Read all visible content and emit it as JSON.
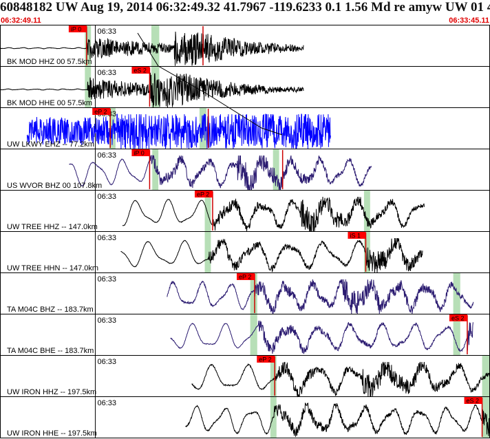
{
  "header": {
    "title": "60848182 UW Aug 19, 2014 06:32:49.32   41.7967 -119.6233  0.1 1.56 Md re amyw UW 01   4",
    "start_time": "06:32:49.11",
    "end_time": "06:33:45.11"
  },
  "colors": {
    "background": "#ffffff",
    "time_text": "#e00000",
    "pick_box": "#ff0000",
    "pick_line": "#cc0000",
    "window_band": "#9fd49f",
    "trace_black": "#000000",
    "trace_blue": "#0000ff",
    "trace_indigo": "#2a1a70",
    "travel_curve": "#000000"
  },
  "chart_data": {
    "type": "line",
    "title": "60848182 UW Aug 19, 2014 06:32:49.32   41.7967 -119.6233  0.1 1.56 Md re amyw UW 01   4",
    "xlabel": "",
    "ylabel": "",
    "x_range": [
      "06:32:49.11",
      "06:33:45.11"
    ],
    "x_range_seconds": [
      0,
      56
    ],
    "minute_tick": {
      "label": "06:33",
      "seconds": 10.89
    },
    "travel_time_curve": true,
    "traces": [
      {
        "label": "BK MOD HHZ 00 57.5km",
        "color": "black",
        "data_start_s": 0,
        "data_end_s": 34.7,
        "noise": 0.01,
        "picks": [
          {
            "label": "iP 0",
            "t": 9.9
          },
          {
            "label": "",
            "t": 23.2
          }
        ],
        "windows": [
          [
            9.7,
            10.4
          ],
          [
            17.3,
            18.2
          ]
        ]
      },
      {
        "label": "BK MOD HHE 00 57.5km",
        "color": "black",
        "data_start_s": 0,
        "data_end_s": 34.7,
        "noise": 0.01,
        "picks": [
          {
            "label": "eS 2",
            "t": 17.1
          }
        ],
        "windows": [
          [
            9.7,
            10.4
          ],
          [
            17.3,
            18.2
          ]
        ]
      },
      {
        "label": "UW LKWY EHZ -- 77.2km",
        "color": "blue",
        "data_start_s": 3.1,
        "data_end_s": 37.8,
        "noise": 0.9,
        "picks": [
          {
            "label": "eP 2",
            "t": 12.6
          },
          {
            "label": "",
            "t": 23.8
          }
        ],
        "windows": [
          [
            12.5,
            13.2
          ],
          [
            22.8,
            23.6
          ]
        ]
      },
      {
        "label": "US WVOR BHZ 00 107.8km",
        "color": "indigo",
        "data_start_s": 7.9,
        "data_end_s": 42.5,
        "noise": 0.06,
        "picks": [
          {
            "label": "iP 0",
            "t": 17.1
          },
          {
            "label": "",
            "t": 32.3
          }
        ],
        "windows": [
          [
            17.4,
            18.1
          ],
          [
            31.2,
            31.9
          ]
        ]
      },
      {
        "label": "UW TREE HHZ -- 147.0km",
        "color": "black",
        "data_start_s": 14.0,
        "data_end_s": 48.5,
        "noise": 0.04,
        "picks": [
          {
            "label": "eP 2",
            "t": 24.3
          }
        ],
        "windows": [
          [
            23.4,
            24.1
          ],
          [
            41.6,
            42.3
          ]
        ]
      },
      {
        "label": "UW TREE HHN -- 147.0km",
        "color": "black",
        "data_start_s": 13.8,
        "data_end_s": 48.3,
        "noise": 0.04,
        "picks": [
          {
            "label": "iS 1",
            "t": 41.8
          }
        ],
        "windows": [
          [
            23.4,
            24.1
          ],
          [
            41.6,
            42.3
          ]
        ]
      },
      {
        "label": "TA M04C BHZ -- 183.7km",
        "color": "indigo",
        "data_start_s": 19.1,
        "data_end_s": 54.1,
        "noise": 0.12,
        "picks": [
          {
            "label": "eP 2",
            "t": 29.1
          }
        ],
        "windows": [
          [
            28.6,
            29.4
          ],
          [
            51.8,
            52.6
          ]
        ]
      },
      {
        "label": "TA M04C BHE -- 183.7km",
        "color": "indigo",
        "data_start_s": 19.5,
        "data_end_s": 54.1,
        "noise": 0.05,
        "picks": [
          {
            "label": "eS 2",
            "t": 53.4
          }
        ],
        "windows": [
          [
            28.6,
            29.4
          ],
          [
            51.8,
            52.6
          ]
        ]
      },
      {
        "label": "UW IRON HHZ -- 197.5km",
        "color": "black",
        "data_start_s": 21.9,
        "data_end_s": 56,
        "noise": 0.08,
        "picks": [
          {
            "label": "eP 2",
            "t": 31.4
          }
        ],
        "windows": [
          [
            30.9,
            31.6
          ],
          [
            55.1,
            56
          ]
        ]
      },
      {
        "label": "UW IRON HHE -- 197.5km",
        "color": "black",
        "data_start_s": 21.2,
        "data_end_s": 56,
        "noise": 0.09,
        "picks": [
          {
            "label": "eS 2",
            "t": 55.1
          }
        ],
        "windows": [
          [
            30.9,
            31.6
          ],
          [
            55.1,
            56
          ]
        ]
      }
    ]
  }
}
